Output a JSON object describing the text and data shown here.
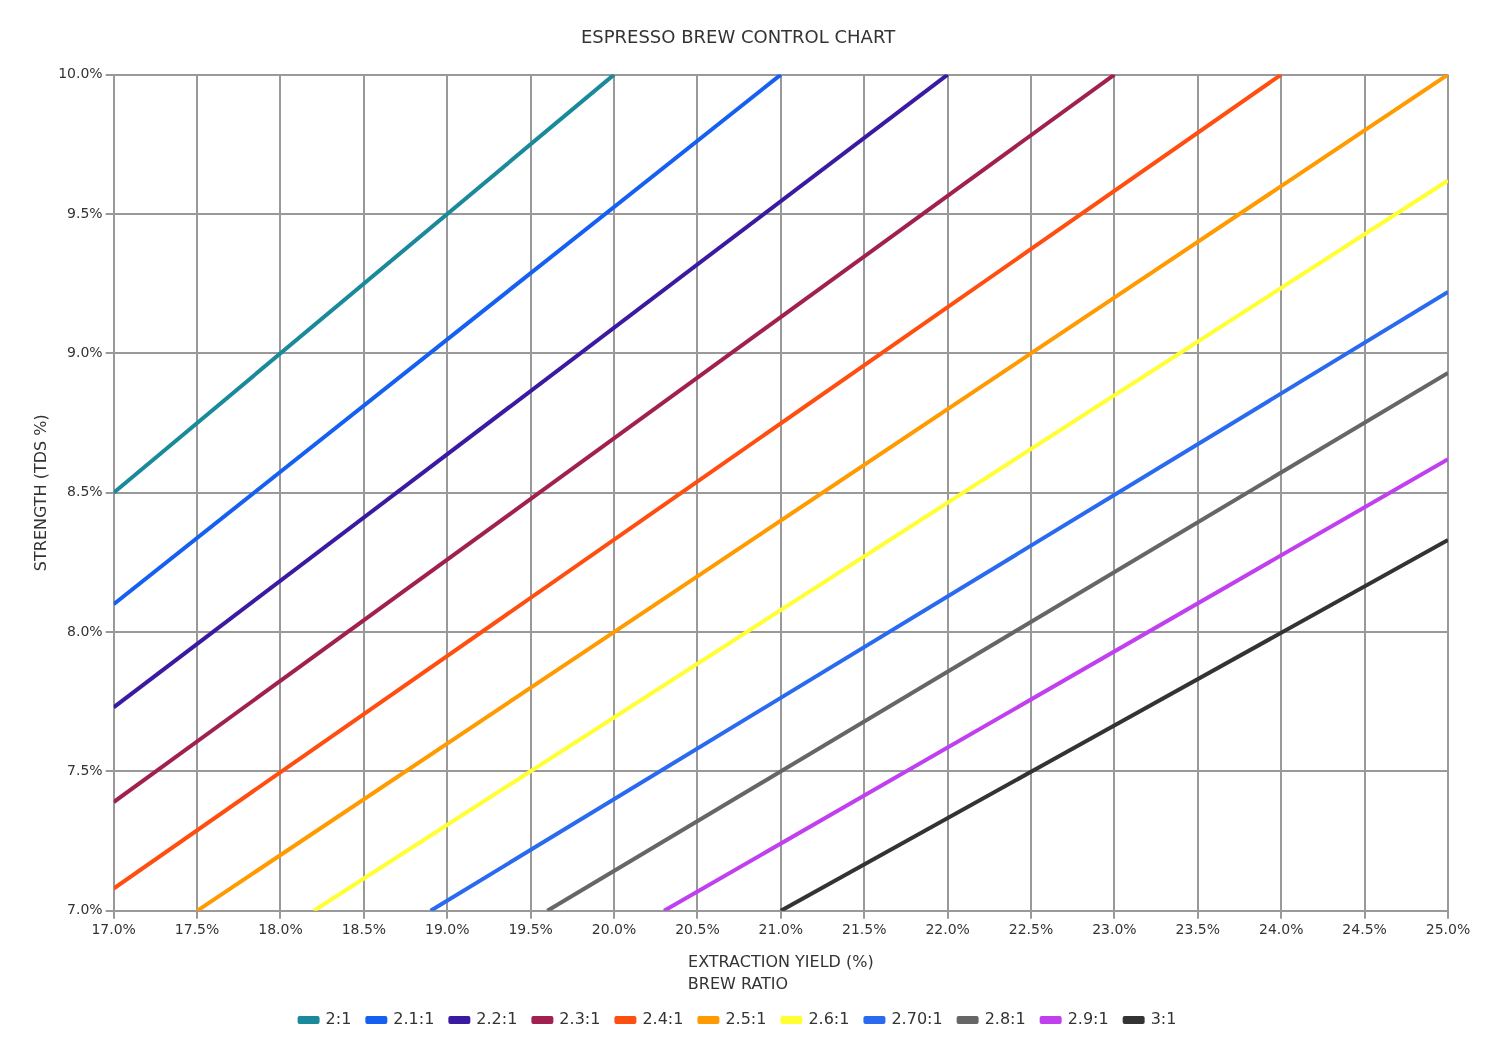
{
  "chart_data": {
    "type": "line",
    "title": "ESPRESSO BREW CONTROL CHART",
    "xlabel": "EXTRACTION YIELD (%)",
    "ylabel": "STRENGTH (TDS %)",
    "legend_title": "BREW RATIO",
    "legend": "bottom",
    "grid": true,
    "marker": "none",
    "line_style": "solid",
    "xlim": [
      17,
      25
    ],
    "xticks": [
      {
        "value": 17,
        "label": "17.0%"
      },
      {
        "value": 17.5,
        "label": "17.5%"
      },
      {
        "value": 18,
        "label": "18.0%"
      },
      {
        "value": 18.5,
        "label": "18.5%"
      },
      {
        "value": 19,
        "label": "19.0%"
      },
      {
        "value": 19.5,
        "label": "19.5%"
      },
      {
        "value": 20,
        "label": "20.0%"
      },
      {
        "value": 20.5,
        "label": "20.5%"
      },
      {
        "value": 21,
        "label": "21.0%"
      },
      {
        "value": 21.5,
        "label": "21.5%"
      },
      {
        "value": 22,
        "label": "22.0%"
      },
      {
        "value": 22.5,
        "label": "22.5%"
      },
      {
        "value": 23,
        "label": "23.0%"
      },
      {
        "value": 23.5,
        "label": "23.5%"
      },
      {
        "value": 24,
        "label": "24.0%"
      },
      {
        "value": 24.5,
        "label": "24.5%"
      },
      {
        "value": 25,
        "label": "25.0%"
      }
    ],
    "ylim": [
      7,
      10
    ],
    "yticks": [
      {
        "value": 7,
        "label": "7.0%"
      },
      {
        "value": 7.5,
        "label": "7.5%"
      },
      {
        "value": 8,
        "label": "8.0%"
      },
      {
        "value": 8.5,
        "label": "8.5%"
      },
      {
        "value": 9,
        "label": "9.0%"
      },
      {
        "value": 9.5,
        "label": "9.5%"
      },
      {
        "value": 10,
        "label": "10.0%"
      }
    ],
    "series": [
      {
        "name": "2:1",
        "color": "#1a8a9a",
        "x": [
          17,
          20
        ],
        "values": [
          8.5,
          10
        ]
      },
      {
        "name": "2.1:1",
        "color": "#1560f0",
        "x": [
          17,
          21
        ],
        "values": [
          8.1,
          10
        ]
      },
      {
        "name": "2.2:1",
        "color": "#3a1aa0",
        "x": [
          17,
          22
        ],
        "values": [
          7.73,
          10
        ]
      },
      {
        "name": "2.3:1",
        "color": "#a0204f",
        "x": [
          17,
          23
        ],
        "values": [
          7.39,
          10
        ]
      },
      {
        "name": "2.4:1",
        "color": "#ff4f10",
        "x": [
          17,
          24
        ],
        "values": [
          7.08,
          10
        ]
      },
      {
        "name": "2.5:1",
        "color": "#ff9a00",
        "x": [
          17.5,
          25
        ],
        "values": [
          7,
          10
        ]
      },
      {
        "name": "2.6:1",
        "color": "#ffff33",
        "x": [
          18.2,
          25
        ],
        "values": [
          7,
          9.62
        ]
      },
      {
        "name": "2.70:1",
        "color": "#2a6af0",
        "x": [
          18.9,
          25
        ],
        "values": [
          7,
          9.22
        ]
      },
      {
        "name": "2.8:1",
        "color": "#666666",
        "x": [
          19.6,
          25
        ],
        "values": [
          7,
          8.93
        ]
      },
      {
        "name": "2.9:1",
        "color": "#c040f0",
        "x": [
          20.3,
          25
        ],
        "values": [
          7,
          8.62
        ]
      },
      {
        "name": "3:1",
        "color": "#333333",
        "x": [
          21,
          25
        ],
        "values": [
          7,
          8.33
        ]
      }
    ]
  }
}
